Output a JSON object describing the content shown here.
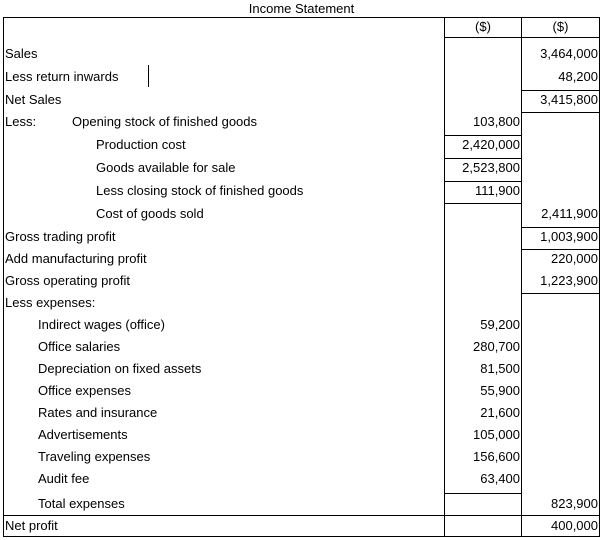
{
  "title": "Income Statement",
  "headers": {
    "col1": "($)",
    "col2": "($)"
  },
  "rows": [
    {
      "label": "Sales",
      "indent": 0,
      "c1": "",
      "c2": "3,464,000"
    },
    {
      "label": "Less return inwards",
      "indent": 0,
      "c1": "",
      "c2": "48,200"
    },
    {
      "label": "Net Sales",
      "indent": 0,
      "c1": "",
      "c2": "3,415,800"
    },
    {
      "label": "Opening stock of finished goods",
      "prefix": "Less:",
      "indent": 1,
      "c1": "103,800",
      "c2": ""
    },
    {
      "label": "Production cost",
      "indent": 2,
      "c1": "2,420,000",
      "c2": ""
    },
    {
      "label": "Goods available for sale",
      "indent": 2,
      "c1": "2,523,800",
      "c2": ""
    },
    {
      "label": "Less closing stock of finished goods",
      "indent": 2,
      "c1": "111,900",
      "c2": ""
    },
    {
      "label": "Cost of goods sold",
      "indent": 2,
      "c1": "",
      "c2": "2,411,900"
    },
    {
      "label": "Gross trading profit",
      "indent": 0,
      "c1": "",
      "c2": "1,003,900"
    },
    {
      "label": "Add manufacturing profit",
      "indent": 0,
      "c1": "",
      "c2": "220,000"
    },
    {
      "label": "Gross operating profit",
      "indent": 0,
      "c1": "",
      "c2": "1,223,900"
    },
    {
      "label": "Less expenses:",
      "indent": 0,
      "c1": "",
      "c2": ""
    },
    {
      "label": "Indirect wages (office)",
      "indent": 3,
      "c1": "59,200",
      "c2": ""
    },
    {
      "label": "Office salaries",
      "indent": 3,
      "c1": "280,700",
      "c2": ""
    },
    {
      "label": "Depreciation on fixed assets",
      "indent": 3,
      "c1": "81,500",
      "c2": ""
    },
    {
      "label": "Office expenses",
      "indent": 3,
      "c1": "55,900",
      "c2": ""
    },
    {
      "label": "Rates and insurance",
      "indent": 3,
      "c1": "21,600",
      "c2": ""
    },
    {
      "label": "Advertisements",
      "indent": 3,
      "c1": "105,000",
      "c2": ""
    },
    {
      "label": "Traveling expenses",
      "indent": 3,
      "c1": "156,600",
      "c2": ""
    },
    {
      "label": "Audit fee",
      "indent": 3,
      "c1": "63,400",
      "c2": ""
    },
    {
      "label": "Total expenses",
      "indent": 3,
      "c1": "",
      "c2": "823,900"
    },
    {
      "label": "Net profit",
      "indent": 0,
      "c1": "",
      "c2": "400,000"
    }
  ]
}
